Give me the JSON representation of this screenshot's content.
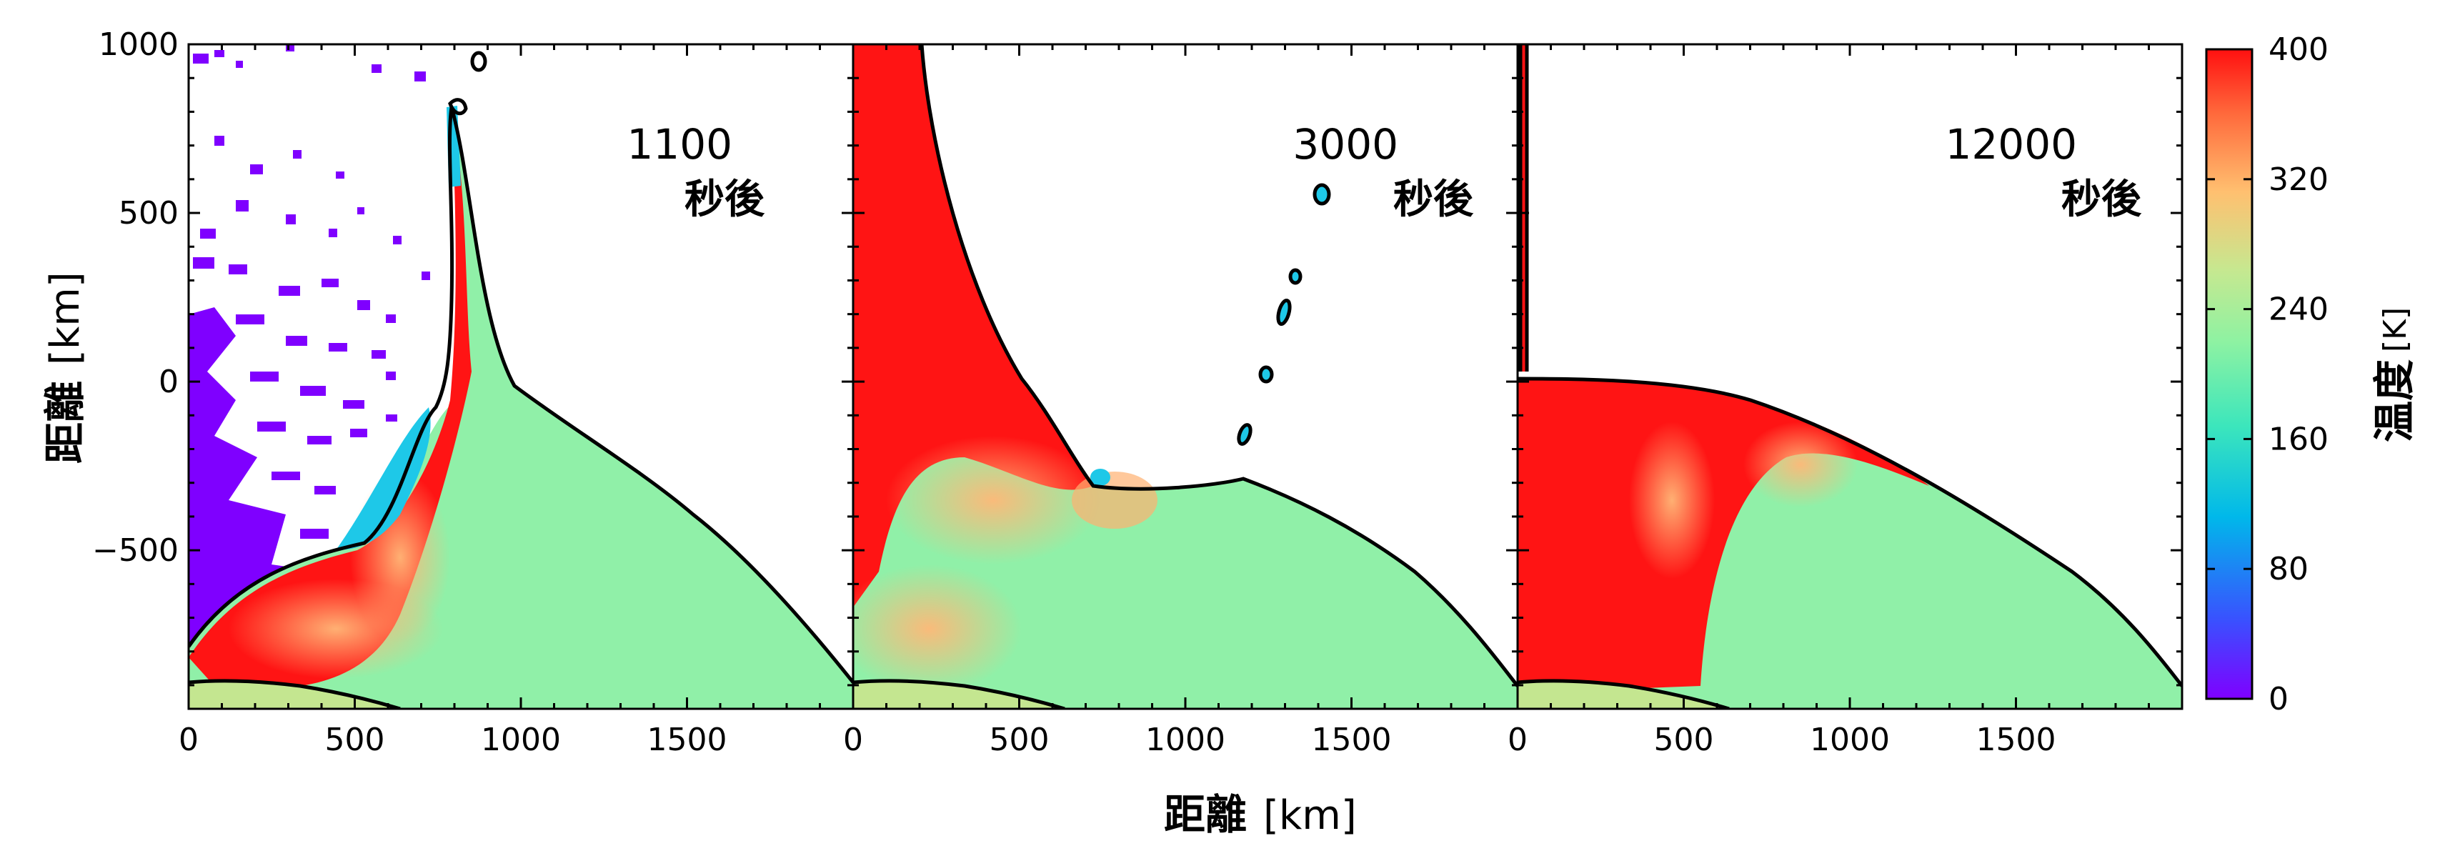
{
  "chart_data": {
    "type": "heatmap",
    "panels": [
      {
        "time_label": "1100",
        "time_unit": "秒後"
      },
      {
        "time_label": "3000",
        "time_unit": "秒後"
      },
      {
        "time_label": "12000",
        "time_unit": "秒後"
      }
    ],
    "xlabel": "距離",
    "xunit": "[km]",
    "ylabel": "距離",
    "yunit": "[km]",
    "xlim": [
      0,
      2000
    ],
    "ylim": [
      -970,
      1000
    ],
    "xticks": [
      0,
      500,
      1000,
      1500
    ],
    "xtick_labels": [
      "0",
      "500",
      "1000",
      "1500"
    ],
    "yticks": [
      -500,
      0,
      500,
      1000
    ],
    "ytick_labels": [
      "−500",
      "0",
      "500",
      "1000"
    ],
    "colorbar": {
      "label": "温度",
      "unit": "[K]",
      "range": [
        0,
        400
      ],
      "ticks": [
        0,
        80,
        160,
        240,
        320,
        400
      ],
      "tick_labels": [
        "0",
        "80",
        "160",
        "240",
        "320",
        "400"
      ],
      "colormap": [
        "#7f00ff",
        "#3070ff",
        "#00c0e0",
        "#40e8b0",
        "#90f0a0",
        "#c8e890",
        "#ffc070",
        "#ff7040",
        "#ff1010"
      ]
    },
    "grid": false
  },
  "colors": {
    "hot": "#ff1414",
    "warm": "#ffb070",
    "bulk": "#90f0a8",
    "planet": "#c4e690",
    "cold": "#7f00ff",
    "cyan": "#1ec8e8",
    "outline": "#000000"
  }
}
